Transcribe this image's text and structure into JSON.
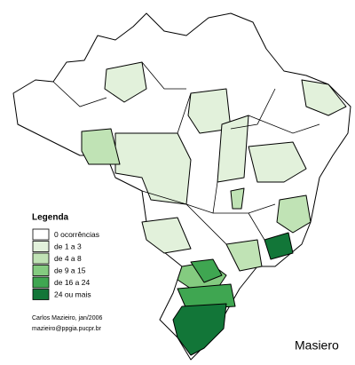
{
  "legend": {
    "title": "Legenda",
    "items": [
      {
        "label": "0 ocorrências",
        "color": "#ffffff"
      },
      {
        "label": "de 1 a 3",
        "color": "#e2f1db"
      },
      {
        "label": "de 4 a 8",
        "color": "#c0e3b5"
      },
      {
        "label": "de 9 a 15",
        "color": "#84cb80"
      },
      {
        "label": "de 16 a 24",
        "color": "#3fa651"
      },
      {
        "label": "24 ou mais",
        "color": "#127638"
      }
    ]
  },
  "credits": [
    "Carlos Mazieiro, jan/2006",
    "mazieiro@ppgia.pucpr.br"
  ],
  "signature": "Masiero"
}
